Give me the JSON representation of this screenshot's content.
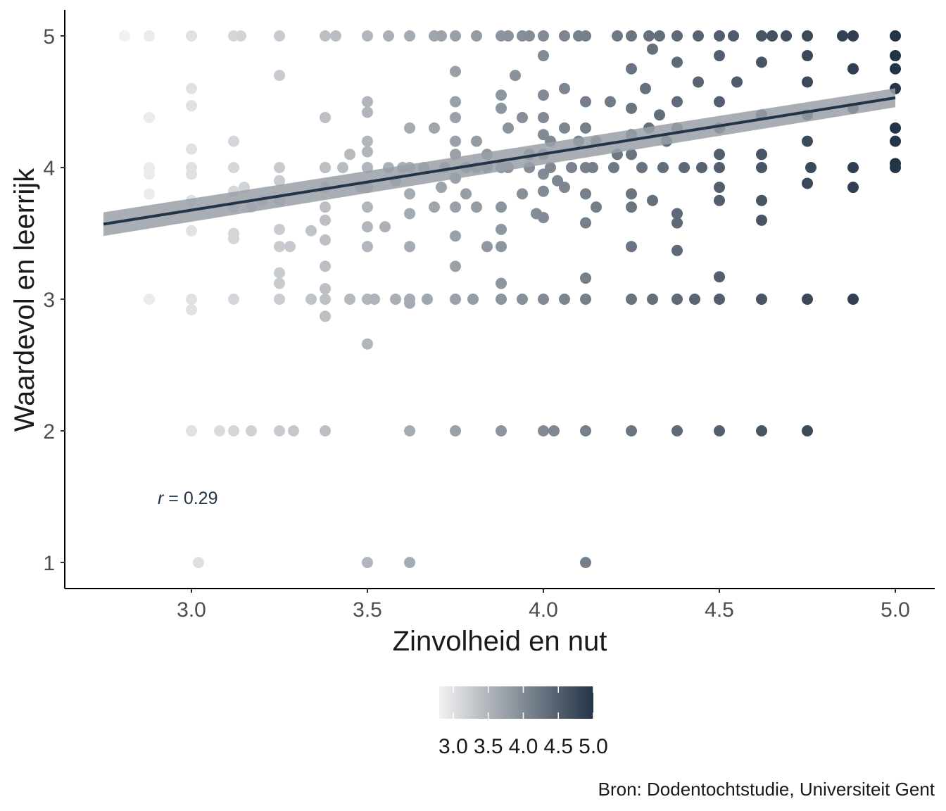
{
  "chart_data": {
    "type": "scatter",
    "xlabel": "Zinvolheid en nut",
    "ylabel": "Waardevol en leerrijk",
    "xlim": [
      2.75,
      5.1
    ],
    "ylim": [
      0.9,
      5.2
    ],
    "x_ticks": [
      3.0,
      3.5,
      4.0,
      4.5,
      5.0
    ],
    "x_tick_labels": [
      "3.0",
      "3.5",
      "4.0",
      "4.5",
      "5.0"
    ],
    "y_ticks": [
      1,
      2,
      3,
      4,
      5
    ],
    "y_tick_labels": [
      "1",
      "2",
      "3",
      "4",
      "5"
    ],
    "grid": false,
    "annotation": {
      "prefix": "r",
      "text": " = 0.29",
      "x": 2.9,
      "y": 1.5
    },
    "regression": {
      "x": [
        2.75,
        5.0
      ],
      "y": [
        3.57,
        4.53
      ],
      "ci_width": 0.09
    },
    "colors": {
      "low": "#f2f2f2",
      "high": "#243447",
      "line": "#243447",
      "band": "#9aa0a8"
    },
    "legend": {
      "position": "bottom",
      "range": [
        2.8,
        5.0
      ],
      "labels": [
        "3.0",
        "3.5",
        "4.0",
        "4.5",
        "5.0"
      ],
      "values": [
        3.0,
        3.5,
        4.0,
        4.5,
        5.0
      ]
    },
    "source": "Bron: Dodentochtstudie, Universiteit Gent",
    "points": [
      [
        2.81,
        5.0
      ],
      [
        2.88,
        5.0
      ],
      [
        3.0,
        5.0
      ],
      [
        3.12,
        5.0
      ],
      [
        3.14,
        5.0
      ],
      [
        3.25,
        5.0
      ],
      [
        3.38,
        5.0
      ],
      [
        3.41,
        5.0
      ],
      [
        3.5,
        5.0
      ],
      [
        3.56,
        5.0
      ],
      [
        3.62,
        5.0
      ],
      [
        3.69,
        5.0
      ],
      [
        3.71,
        5.0
      ],
      [
        3.75,
        5.0
      ],
      [
        3.81,
        5.0
      ],
      [
        3.88,
        5.0
      ],
      [
        3.9,
        5.0
      ],
      [
        3.94,
        5.0
      ],
      [
        3.96,
        5.0
      ],
      [
        4.0,
        5.0
      ],
      [
        4.06,
        5.0
      ],
      [
        4.1,
        5.0
      ],
      [
        4.12,
        5.0
      ],
      [
        4.21,
        5.0
      ],
      [
        4.25,
        5.0
      ],
      [
        4.3,
        5.0
      ],
      [
        4.33,
        5.0
      ],
      [
        4.38,
        5.0
      ],
      [
        4.44,
        5.0
      ],
      [
        4.5,
        5.0
      ],
      [
        4.54,
        5.0
      ],
      [
        4.62,
        5.0
      ],
      [
        4.65,
        5.0
      ],
      [
        4.69,
        5.0
      ],
      [
        4.75,
        5.0
      ],
      [
        4.85,
        5.0
      ],
      [
        4.88,
        5.0
      ],
      [
        5.0,
        5.0
      ],
      [
        2.88,
        4.38
      ],
      [
        3.0,
        4.6
      ],
      [
        3.0,
        4.47
      ],
      [
        3.0,
        4.14
      ],
      [
        3.25,
        4.7
      ],
      [
        3.38,
        4.38
      ],
      [
        3.5,
        4.5
      ],
      [
        3.5,
        4.42
      ],
      [
        3.5,
        4.2
      ],
      [
        3.5,
        4.12
      ],
      [
        3.56,
        4.0
      ],
      [
        3.62,
        4.3
      ],
      [
        3.62,
        4.0
      ],
      [
        3.69,
        4.3
      ],
      [
        3.75,
        4.73
      ],
      [
        3.75,
        4.5
      ],
      [
        3.75,
        4.38
      ],
      [
        3.75,
        4.2
      ],
      [
        3.75,
        4.1
      ],
      [
        3.75,
        3.92
      ],
      [
        3.81,
        4.2
      ],
      [
        3.81,
        4.0
      ],
      [
        3.84,
        4.1
      ],
      [
        3.88,
        4.55
      ],
      [
        3.88,
        4.45
      ],
      [
        3.88,
        4.0
      ],
      [
        3.9,
        4.3
      ],
      [
        3.92,
        4.7
      ],
      [
        3.94,
        4.38
      ],
      [
        3.96,
        4.1
      ],
      [
        4.0,
        4.85
      ],
      [
        4.0,
        4.55
      ],
      [
        4.0,
        4.38
      ],
      [
        4.0,
        4.25
      ],
      [
        4.0,
        4.1
      ],
      [
        4.0,
        3.95
      ],
      [
        4.02,
        4.2
      ],
      [
        4.06,
        4.6
      ],
      [
        4.06,
        4.3
      ],
      [
        4.1,
        4.2
      ],
      [
        4.12,
        4.5
      ],
      [
        4.12,
        4.3
      ],
      [
        4.12,
        4.0
      ],
      [
        4.15,
        4.2
      ],
      [
        4.19,
        4.5
      ],
      [
        4.21,
        4.1
      ],
      [
        4.25,
        4.75
      ],
      [
        4.25,
        4.45
      ],
      [
        4.25,
        4.25
      ],
      [
        4.25,
        4.1
      ],
      [
        4.29,
        4.6
      ],
      [
        4.3,
        4.3
      ],
      [
        4.31,
        4.9
      ],
      [
        4.33,
        4.4
      ],
      [
        4.35,
        4.2
      ],
      [
        4.38,
        4.8
      ],
      [
        4.38,
        4.5
      ],
      [
        4.38,
        4.3
      ],
      [
        4.44,
        4.65
      ],
      [
        4.5,
        4.85
      ],
      [
        4.5,
        4.5
      ],
      [
        4.5,
        4.3
      ],
      [
        4.5,
        4.1
      ],
      [
        4.55,
        4.65
      ],
      [
        4.62,
        4.8
      ],
      [
        4.62,
        4.4
      ],
      [
        4.62,
        4.1
      ],
      [
        4.75,
        4.85
      ],
      [
        4.75,
        4.65
      ],
      [
        4.75,
        4.4
      ],
      [
        4.75,
        4.2
      ],
      [
        4.88,
        4.75
      ],
      [
        4.88,
        4.45
      ],
      [
        5.0,
        4.85
      ],
      [
        5.0,
        4.75
      ],
      [
        5.0,
        4.6
      ],
      [
        5.0,
        4.3
      ],
      [
        5.0,
        4.2
      ],
      [
        5.0,
        4.03
      ],
      [
        2.88,
        4.0
      ],
      [
        2.88,
        3.95
      ],
      [
        2.88,
        3.8
      ],
      [
        3.0,
        4.0
      ],
      [
        3.0,
        3.95
      ],
      [
        3.0,
        3.75
      ],
      [
        3.0,
        3.52
      ],
      [
        3.12,
        4.2
      ],
      [
        3.12,
        4.0
      ],
      [
        3.12,
        3.82
      ],
      [
        3.12,
        3.7
      ],
      [
        3.12,
        3.5
      ],
      [
        3.12,
        3.46
      ],
      [
        3.15,
        3.85
      ],
      [
        3.17,
        3.7
      ],
      [
        3.2,
        3.75
      ],
      [
        3.25,
        4.0
      ],
      [
        3.25,
        3.9
      ],
      [
        3.25,
        3.75
      ],
      [
        3.25,
        3.53
      ],
      [
        3.25,
        3.4
      ],
      [
        3.28,
        3.4
      ],
      [
        3.34,
        3.52
      ],
      [
        3.38,
        4.0
      ],
      [
        3.38,
        3.85
      ],
      [
        3.38,
        3.7
      ],
      [
        3.38,
        3.6
      ],
      [
        3.38,
        3.45
      ],
      [
        3.38,
        3.25
      ],
      [
        3.43,
        4.0
      ],
      [
        3.45,
        4.1
      ],
      [
        3.48,
        3.85
      ],
      [
        3.5,
        4.0
      ],
      [
        3.5,
        3.85
      ],
      [
        3.5,
        3.7
      ],
      [
        3.5,
        3.55
      ],
      [
        3.5,
        3.4
      ],
      [
        3.55,
        3.55
      ],
      [
        3.58,
        3.9
      ],
      [
        3.62,
        3.8
      ],
      [
        3.62,
        3.65
      ],
      [
        3.62,
        3.4
      ],
      [
        3.69,
        3.7
      ],
      [
        3.71,
        3.85
      ],
      [
        3.75,
        3.7
      ],
      [
        3.75,
        3.48
      ],
      [
        3.75,
        3.25
      ],
      [
        3.78,
        3.8
      ],
      [
        3.81,
        3.7
      ],
      [
        3.84,
        3.4
      ],
      [
        3.88,
        3.7
      ],
      [
        3.88,
        3.53
      ],
      [
        3.88,
        3.4
      ],
      [
        3.94,
        3.8
      ],
      [
        3.98,
        3.65
      ],
      [
        4.0,
        3.82
      ],
      [
        4.0,
        3.62
      ],
      [
        4.04,
        3.9
      ],
      [
        4.06,
        3.85
      ],
      [
        4.12,
        3.8
      ],
      [
        4.12,
        3.58
      ],
      [
        4.15,
        3.7
      ],
      [
        4.25,
        3.8
      ],
      [
        4.25,
        3.7
      ],
      [
        4.25,
        3.4
      ],
      [
        4.31,
        3.75
      ],
      [
        4.38,
        3.65
      ],
      [
        4.38,
        3.58
      ],
      [
        4.38,
        3.37
      ],
      [
        4.5,
        3.85
      ],
      [
        4.5,
        3.75
      ],
      [
        4.62,
        3.75
      ],
      [
        4.62,
        3.6
      ],
      [
        4.75,
        3.88
      ],
      [
        4.88,
        3.85
      ],
      [
        3.38,
        4.0
      ],
      [
        3.5,
        4.0
      ],
      [
        3.6,
        4.0
      ],
      [
        3.66,
        4.0
      ],
      [
        3.72,
        4.0
      ],
      [
        3.78,
        4.0
      ],
      [
        3.84,
        4.0
      ],
      [
        3.9,
        4.0
      ],
      [
        3.96,
        4.0
      ],
      [
        4.02,
        4.0
      ],
      [
        4.08,
        4.0
      ],
      [
        4.14,
        4.0
      ],
      [
        4.2,
        4.0
      ],
      [
        4.28,
        4.0
      ],
      [
        4.34,
        4.0
      ],
      [
        4.4,
        4.0
      ],
      [
        4.45,
        4.0
      ],
      [
        4.5,
        4.0
      ],
      [
        4.62,
        4.0
      ],
      [
        4.76,
        4.0
      ],
      [
        4.88,
        4.0
      ],
      [
        5.0,
        4.0
      ],
      [
        2.88,
        3.0
      ],
      [
        3.0,
        3.0
      ],
      [
        3.0,
        2.92
      ],
      [
        3.12,
        3.0
      ],
      [
        3.25,
        3.0
      ],
      [
        3.25,
        3.2
      ],
      [
        3.25,
        3.12
      ],
      [
        3.34,
        3.0
      ],
      [
        3.38,
        3.0
      ],
      [
        3.38,
        3.08
      ],
      [
        3.38,
        2.87
      ],
      [
        3.45,
        3.0
      ],
      [
        3.5,
        3.0
      ],
      [
        3.52,
        3.0
      ],
      [
        3.58,
        3.0
      ],
      [
        3.62,
        3.0
      ],
      [
        3.62,
        2.97
      ],
      [
        3.67,
        3.0
      ],
      [
        3.75,
        3.0
      ],
      [
        3.8,
        3.0
      ],
      [
        3.88,
        3.0
      ],
      [
        3.88,
        3.12
      ],
      [
        3.94,
        3.0
      ],
      [
        4.0,
        3.0
      ],
      [
        4.06,
        3.0
      ],
      [
        4.12,
        3.0
      ],
      [
        4.12,
        3.16
      ],
      [
        4.25,
        3.0
      ],
      [
        4.31,
        3.0
      ],
      [
        4.38,
        3.0
      ],
      [
        4.43,
        3.0
      ],
      [
        4.5,
        3.0
      ],
      [
        4.5,
        3.17
      ],
      [
        4.62,
        3.0
      ],
      [
        4.75,
        3.0
      ],
      [
        4.88,
        3.0
      ],
      [
        3.5,
        2.66
      ],
      [
        3.0,
        2.0
      ],
      [
        3.08,
        2.0
      ],
      [
        3.12,
        2.0
      ],
      [
        3.17,
        2.0
      ],
      [
        3.25,
        2.0
      ],
      [
        3.29,
        2.0
      ],
      [
        3.38,
        2.0
      ],
      [
        3.62,
        2.0
      ],
      [
        3.75,
        2.0
      ],
      [
        3.88,
        2.0
      ],
      [
        4.0,
        2.0
      ],
      [
        4.03,
        2.0
      ],
      [
        4.12,
        2.0
      ],
      [
        4.25,
        2.0
      ],
      [
        4.38,
        2.0
      ],
      [
        4.5,
        2.0
      ],
      [
        4.62,
        2.0
      ],
      [
        4.75,
        2.0
      ],
      [
        3.02,
        1.0
      ],
      [
        3.5,
        1.0
      ],
      [
        3.62,
        1.0
      ],
      [
        4.12,
        1.0
      ]
    ]
  }
}
